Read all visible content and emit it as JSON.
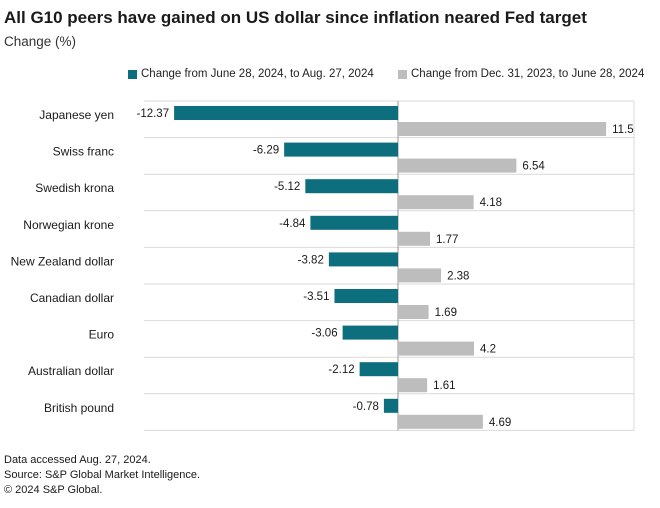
{
  "title": "All G10 peers have gained on US dollar since inflation neared Fed target",
  "subtitle": "Change (%)",
  "colors": {
    "series_1": "#0d6e7e",
    "series_2": "#bdbdbd",
    "grid": "#d9d9d9",
    "axis": "#999999"
  },
  "chart_data": {
    "type": "bar",
    "orientation": "horizontal",
    "categories": [
      "Japanese yen",
      "Swiss franc",
      "Swedish krona",
      "Norwegian krone",
      "New Zealand dollar",
      "Canadian dollar",
      "Euro",
      "Australian dollar",
      "British pound"
    ],
    "series": [
      {
        "name": "Change from June 28, 2024, to Aug. 27, 2024",
        "values": [
          -12.37,
          -6.29,
          -5.12,
          -4.84,
          -3.82,
          -3.51,
          -3.06,
          -2.12,
          -0.78
        ],
        "labels": [
          "-12.37",
          "-6.29",
          "-5.12",
          "-4.84",
          "-3.82",
          "-3.51",
          "-3.06",
          "-2.12",
          "-0.78"
        ]
      },
      {
        "name": "Change from Dec. 31, 2023, to June 28, 2024",
        "values": [
          11.5,
          6.54,
          4.18,
          1.77,
          2.38,
          1.69,
          4.2,
          1.61,
          4.69
        ],
        "labels": [
          "11.5",
          "6.54",
          "4.18",
          "1.77",
          "2.38",
          "1.69",
          "4.2",
          "1.61",
          "4.69"
        ]
      }
    ],
    "xlim": [
      -13,
      13
    ],
    "xlabel": "",
    "ylabel": "Change (%)",
    "legend": "top-right",
    "grid": true
  },
  "footer": {
    "line1": "Data accessed Aug. 27, 2024.",
    "line2": "Source: S&P Global Market Intelligence.",
    "line3": "© 2024 S&P Global."
  }
}
